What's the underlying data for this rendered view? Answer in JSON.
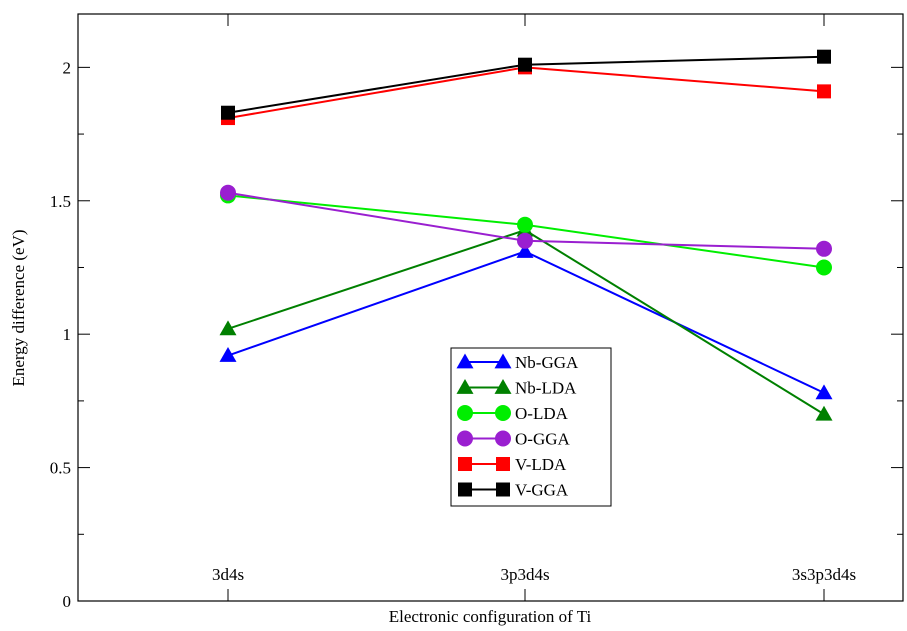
{
  "chart_data": {
    "type": "line",
    "xlabel": "Electronic configuration of Ti",
    "ylabel": "Energy difference (eV)",
    "categories": [
      "3d4s",
      "3p3d4s",
      "3s3p3d4s"
    ],
    "ylim": [
      0,
      2.2
    ],
    "yticks": [
      0,
      0.5,
      1,
      1.5,
      2
    ],
    "ytick_labels": [
      "0",
      "0.5",
      "1",
      "1.5",
      "2"
    ],
    "grid": false,
    "legend_position": "center",
    "series": [
      {
        "name": "Nb-GGA",
        "color": "#0000ff",
        "marker": "triangle",
        "values": [
          0.92,
          1.31,
          0.78
        ]
      },
      {
        "name": "Nb-LDA",
        "color": "#008000",
        "marker": "triangle",
        "values": [
          1.02,
          1.39,
          0.7
        ]
      },
      {
        "name": "O-LDA",
        "color": "#00ee00",
        "marker": "circle",
        "values": [
          1.52,
          1.41,
          1.25
        ]
      },
      {
        "name": "O-GGA",
        "color": "#9a1fd0",
        "marker": "circle",
        "values": [
          1.53,
          1.35,
          1.32
        ]
      },
      {
        "name": "V-LDA",
        "color": "#ff0000",
        "marker": "square",
        "values": [
          1.81,
          2.0,
          1.91
        ]
      },
      {
        "name": "V-GGA",
        "color": "#000000",
        "marker": "square",
        "values": [
          1.83,
          2.01,
          2.04
        ]
      }
    ]
  }
}
